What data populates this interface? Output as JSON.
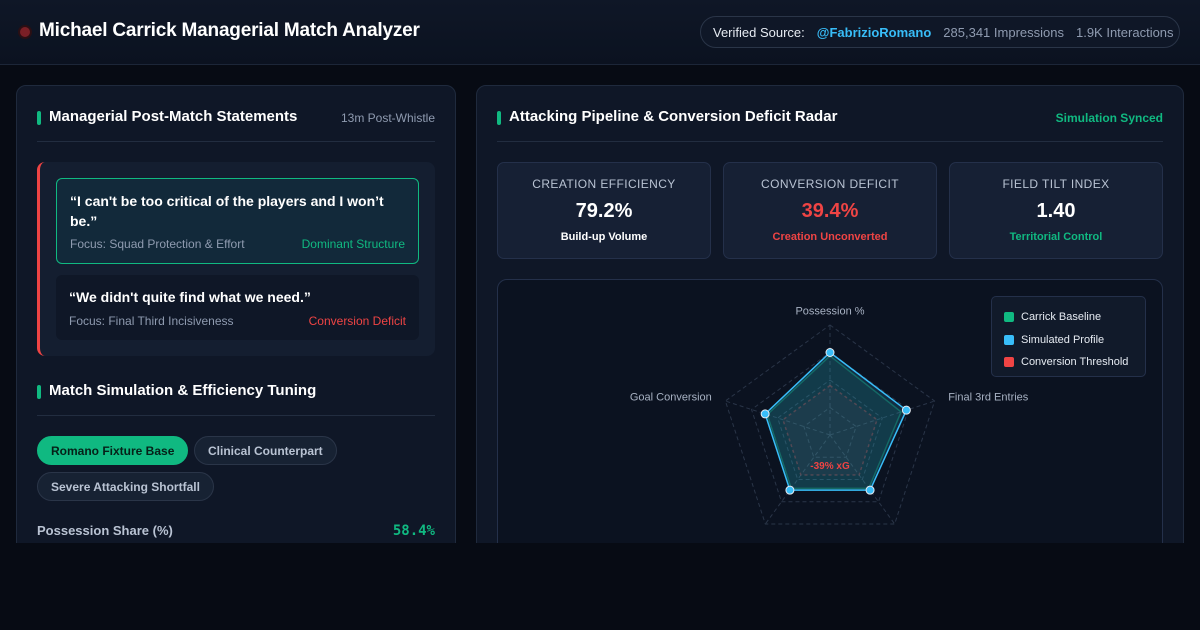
{
  "header": {
    "title": "Michael Carrick Managerial Match Analyzer",
    "source_label": "Verified Source:",
    "source_handle": "@FabrizioRomano",
    "impressions": "285,341 Impressions",
    "interactions": "1.9K Interactions"
  },
  "statements": {
    "title": "Managerial Post-Match Statements",
    "meta": "13m Post-Whistle",
    "quotes": [
      {
        "text": "“I can't be too critical of the players and I won’t be.”",
        "focus": "Focus: Squad Protection & Effort",
        "tag": "Dominant Structure"
      },
      {
        "text": "“We didn't quite find what we need.”",
        "focus": "Focus: Final Third Incisiveness",
        "tag": "Conversion Deficit"
      }
    ]
  },
  "simulation": {
    "title": "Match Simulation & Efficiency Tuning",
    "scenarios": [
      "Romano Fixture Base",
      "Clinical Counterpart",
      "Severe Attacking Shortfall"
    ],
    "active_scenario": "Romano Fixture Base",
    "slider": {
      "label": "Possession Share (%)",
      "value_text": "58.4%",
      "value": 58.4
    }
  },
  "pipeline": {
    "title": "Attacking Pipeline & Conversion Deficit Radar",
    "status": "Simulation Synced",
    "kpis": [
      {
        "label": "CREATION EFFICIENCY",
        "value": "79.2%",
        "sub": "Build-up Volume"
      },
      {
        "label": "CONVERSION DEFICIT",
        "value": "39.4%",
        "sub": "Creation Unconverted"
      },
      {
        "label": "FIELD TILT INDEX",
        "value": "1.40",
        "sub": "Territorial Control"
      }
    ],
    "radar": {
      "axes": [
        "Possession %",
        "Final 3rd Entries",
        "",
        "",
        "Goal Conversion"
      ],
      "center_label": "-39% xG",
      "simulated": [
        0.75,
        0.73,
        0.62,
        0.62,
        0.62
      ],
      "baseline": [
        0.72,
        0.68,
        0.6,
        0.6,
        0.6
      ],
      "threshold": [
        0.45,
        0.45,
        0.45,
        0.45,
        0.45
      ],
      "legend": [
        "Carrick Baseline",
        "Simulated Profile",
        "Conversion Threshold"
      ]
    }
  },
  "colors": {
    "accent": "#10b981",
    "simulated": "#38bdf8",
    "danger": "#ef4444",
    "background": "#070b14",
    "panel": "#0f1727"
  }
}
